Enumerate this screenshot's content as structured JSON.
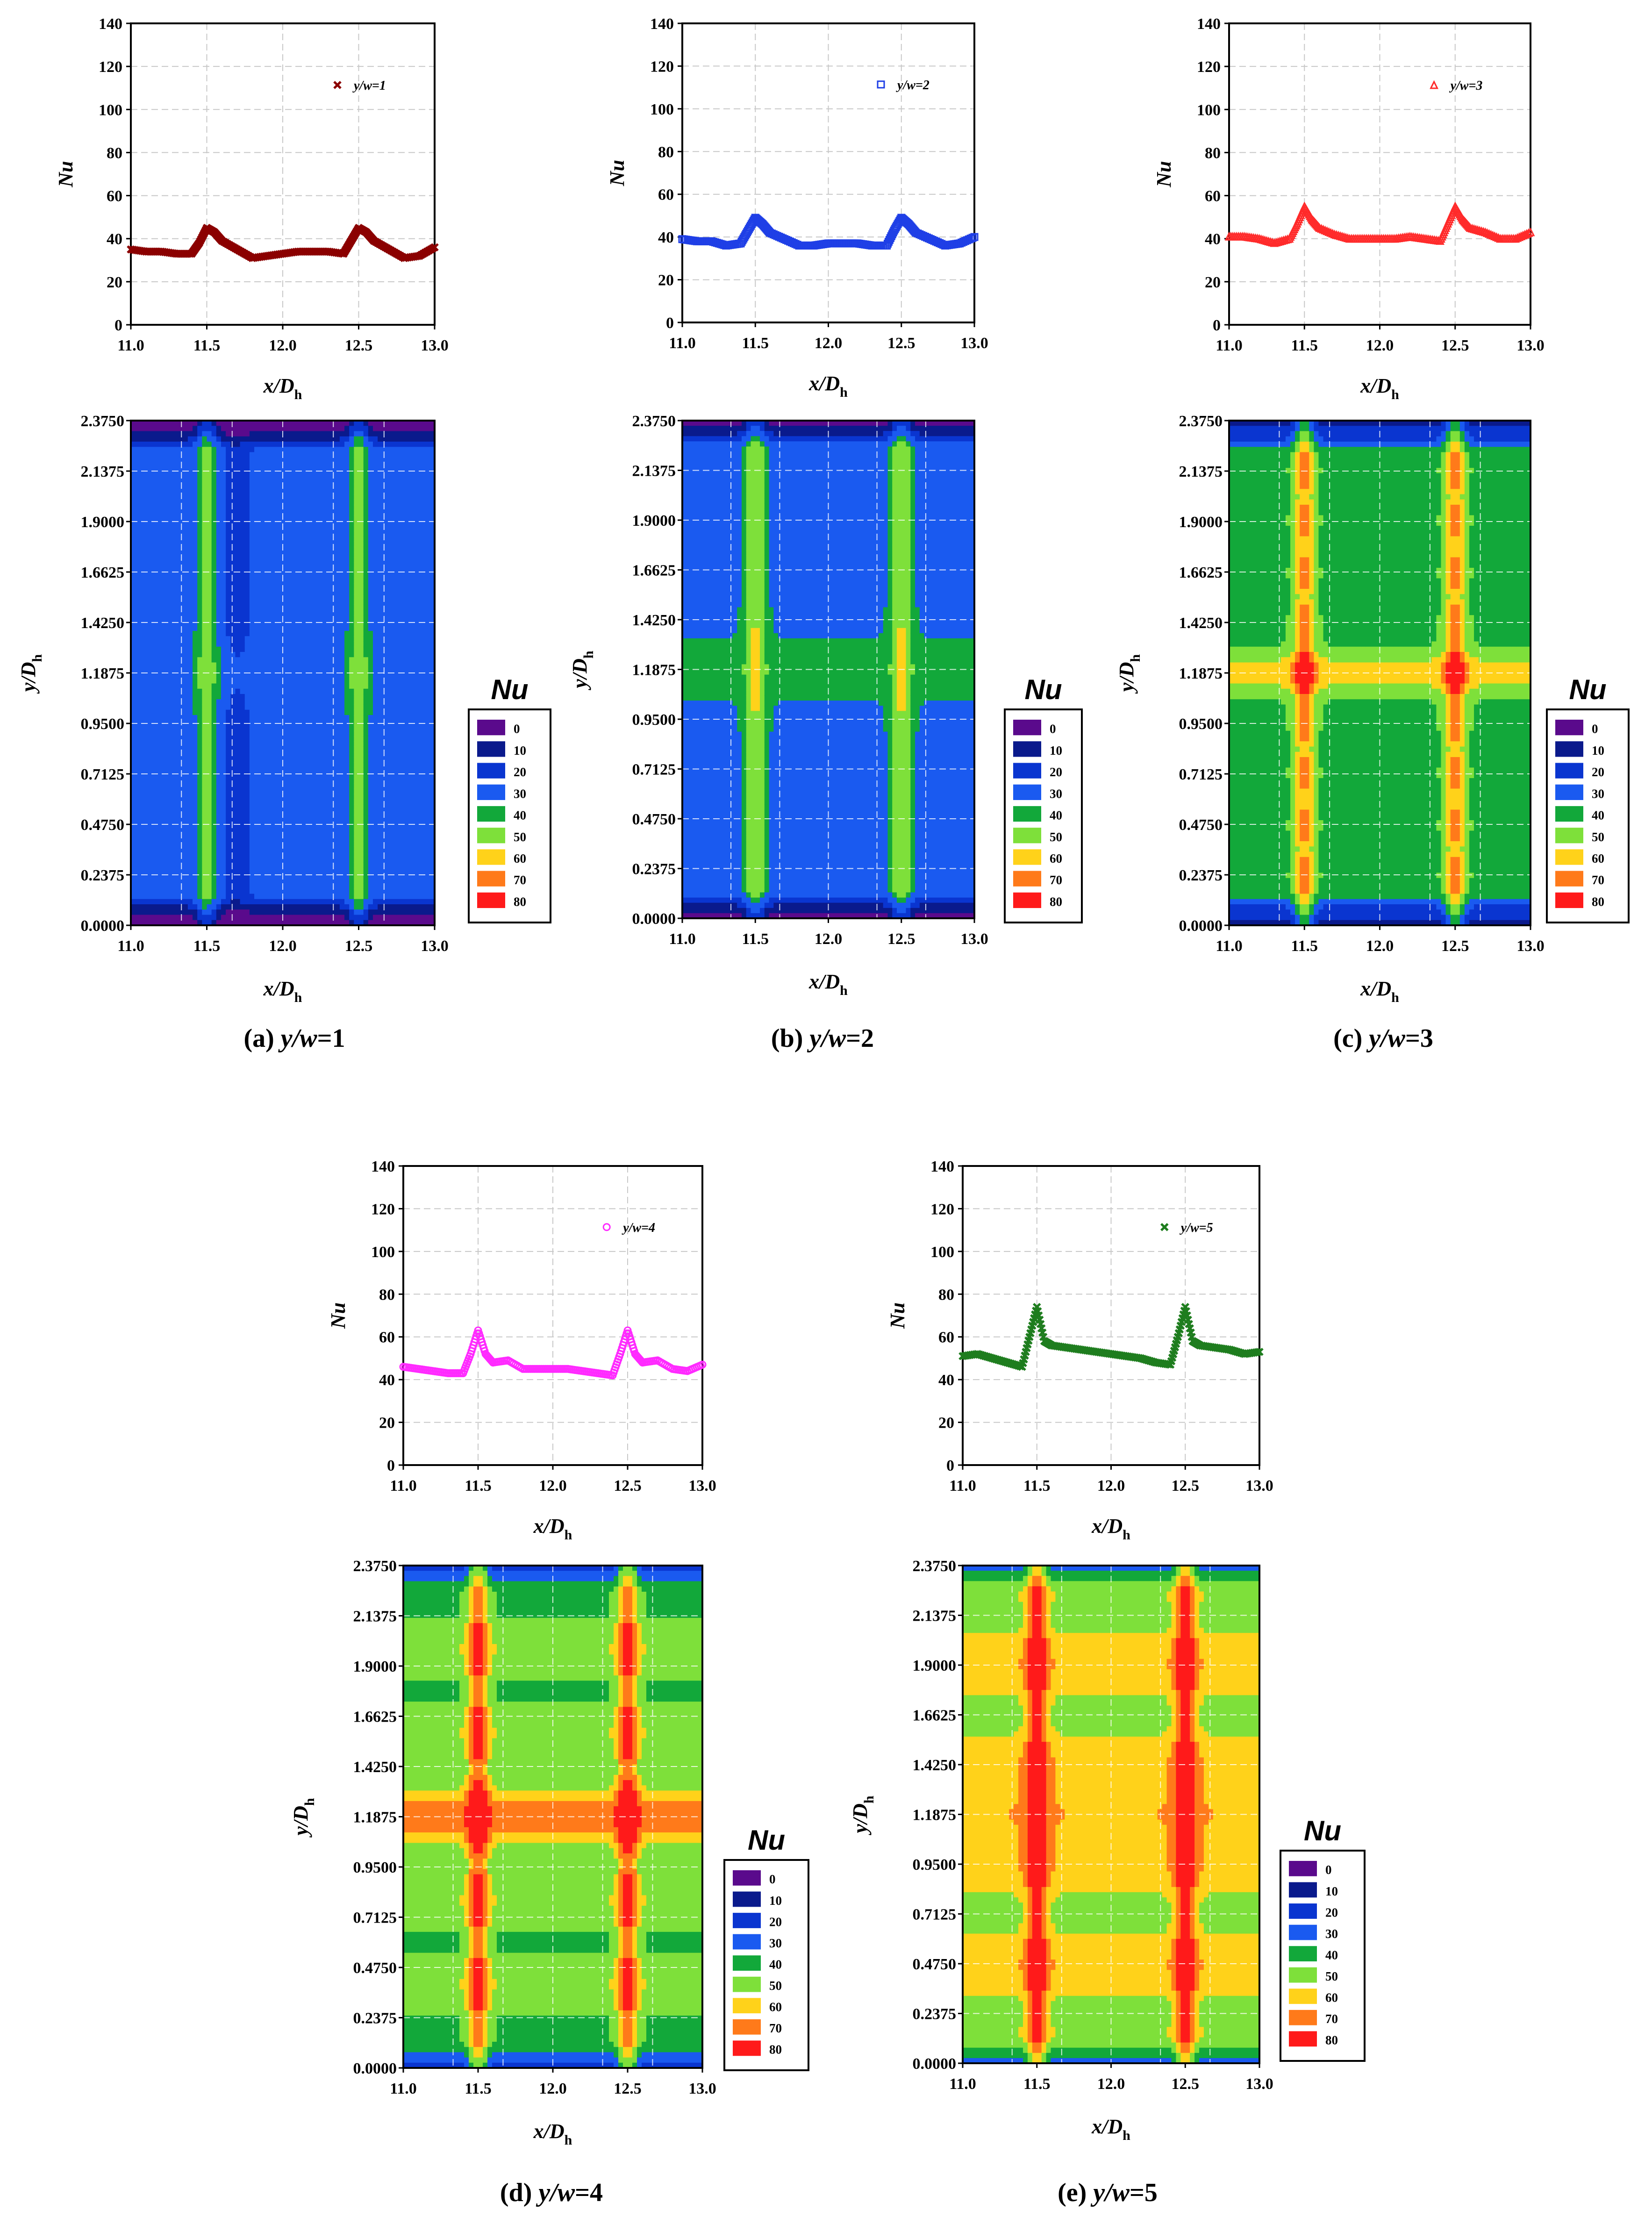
{
  "colorbar": {
    "title": "Nu",
    "levels": [
      "0",
      "10",
      "20",
      "30",
      "40",
      "50",
      "60",
      "70",
      "80"
    ],
    "colors": [
      "#5a0a8c",
      "#0a1a8c",
      "#0a35d0",
      "#1a5af0",
      "#12a83a",
      "#7ee03a",
      "#ffd21a",
      "#ff7a1a",
      "#ff1a1a"
    ]
  },
  "line_axes": {
    "ylabel": "Nu",
    "xlabel_main": "x/D",
    "xlabel_sub": "h",
    "y_ticks": [
      "0",
      "20",
      "40",
      "60",
      "80",
      "100",
      "120",
      "140"
    ],
    "x_ticks": [
      "11.0",
      "11.5",
      "12.0",
      "12.5",
      "13.0"
    ]
  },
  "contour_axes": {
    "ylabel_main": "y/D",
    "ylabel_sub": "h",
    "xlabel_main": "x/D",
    "xlabel_sub": "h",
    "y_ticks": [
      "0.0000",
      "0.2375",
      "0.4750",
      "0.7125",
      "0.9500",
      "1.1875",
      "1.4250",
      "1.6625",
      "1.9000",
      "2.1375",
      "2.3750"
    ],
    "x_ticks": [
      "11.0",
      "11.5",
      "12.0",
      "12.5",
      "13.0"
    ]
  },
  "panels": [
    {
      "caption_letter": "(a) ",
      "caption_var": "y/w",
      "caption_val": "=1",
      "legend": "y/w=1",
      "color": "#8b0000",
      "marker": "x"
    },
    {
      "caption_letter": "(b) ",
      "caption_var": "y/w",
      "caption_val": "=2",
      "legend": "y/w=2",
      "color": "#1f3fe6",
      "marker": "square"
    },
    {
      "caption_letter": "(c) ",
      "caption_var": "y/w",
      "caption_val": "=3",
      "legend": "y/w=3",
      "color": "#ff2a2a",
      "marker": "triangle"
    },
    {
      "caption_letter": "(d) ",
      "caption_var": "y/w",
      "caption_val": "=4",
      "legend": "y/w=4",
      "color": "#ff2aff",
      "marker": "circle"
    },
    {
      "caption_letter": "(e) ",
      "caption_var": "y/w",
      "caption_val": "=5",
      "legend": "y/w=5",
      "color": "#1e7d1e",
      "marker": "x"
    }
  ],
  "chart_data": [
    {
      "type": "line",
      "panel": "a",
      "xlabel": "x/Dh",
      "ylabel": "Nu",
      "xlim": [
        11.0,
        13.0
      ],
      "ylim": [
        0,
        140
      ],
      "grid": true,
      "legend_position": "top-right",
      "series": [
        {
          "name": "y/w=1",
          "x": [
            11.0,
            11.1,
            11.2,
            11.3,
            11.4,
            11.45,
            11.5,
            11.55,
            11.6,
            11.7,
            11.8,
            11.9,
            12.0,
            12.1,
            12.2,
            12.3,
            12.4,
            12.45,
            12.5,
            12.55,
            12.6,
            12.7,
            12.8,
            12.9,
            13.0
          ],
          "y": [
            35,
            34,
            34,
            33,
            33,
            38,
            45,
            43,
            39,
            35,
            31,
            32,
            33,
            34,
            34,
            34,
            33,
            39,
            45,
            43,
            39,
            35,
            31,
            32,
            36
          ]
        }
      ]
    },
    {
      "type": "line",
      "panel": "b",
      "xlabel": "x/Dh",
      "ylabel": "Nu",
      "xlim": [
        11.0,
        13.0
      ],
      "ylim": [
        0,
        140
      ],
      "grid": true,
      "legend_position": "top-right",
      "series": [
        {
          "name": "y/w=2",
          "x": [
            11.0,
            11.1,
            11.2,
            11.3,
            11.4,
            11.45,
            11.5,
            11.55,
            11.6,
            11.7,
            11.8,
            11.9,
            12.0,
            12.1,
            12.2,
            12.3,
            12.4,
            12.45,
            12.5,
            12.55,
            12.6,
            12.7,
            12.8,
            12.9,
            13.0
          ],
          "y": [
            39,
            38,
            38,
            36,
            37,
            43,
            49,
            46,
            42,
            39,
            36,
            36,
            37,
            37,
            37,
            36,
            36,
            43,
            49,
            46,
            42,
            39,
            36,
            37,
            40
          ]
        }
      ]
    },
    {
      "type": "line",
      "panel": "c",
      "xlabel": "x/Dh",
      "ylabel": "Nu",
      "xlim": [
        11.0,
        13.0
      ],
      "ylim": [
        0,
        140
      ],
      "grid": true,
      "legend_position": "top-right",
      "series": [
        {
          "name": "y/w=3",
          "x": [
            11.0,
            11.1,
            11.2,
            11.3,
            11.4,
            11.45,
            11.5,
            11.55,
            11.6,
            11.7,
            11.8,
            11.9,
            12.0,
            12.1,
            12.2,
            12.3,
            12.4,
            12.45,
            12.5,
            12.55,
            12.6,
            12.7,
            12.8,
            12.9,
            13.0
          ],
          "y": [
            41,
            41,
            40,
            38,
            40,
            47,
            55,
            49,
            45,
            42,
            40,
            40,
            40,
            40,
            41,
            40,
            39,
            47,
            55,
            49,
            45,
            43,
            40,
            40,
            43
          ]
        }
      ]
    },
    {
      "type": "line",
      "panel": "d",
      "xlabel": "x/Dh",
      "ylabel": "Nu",
      "xlim": [
        11.0,
        13.0
      ],
      "ylim": [
        0,
        140
      ],
      "grid": true,
      "legend_position": "top-right",
      "series": [
        {
          "name": "y/w=4",
          "x": [
            11.0,
            11.1,
            11.2,
            11.3,
            11.4,
            11.45,
            11.5,
            11.55,
            11.6,
            11.7,
            11.8,
            11.9,
            12.0,
            12.1,
            12.2,
            12.3,
            12.4,
            12.45,
            12.5,
            12.55,
            12.6,
            12.7,
            12.8,
            12.9,
            13.0
          ],
          "y": [
            46,
            45,
            44,
            43,
            43,
            52,
            63,
            52,
            48,
            49,
            45,
            45,
            45,
            45,
            44,
            43,
            42,
            52,
            63,
            52,
            48,
            49,
            45,
            44,
            47
          ]
        }
      ]
    },
    {
      "type": "line",
      "panel": "e",
      "xlabel": "x/Dh",
      "ylabel": "Nu",
      "xlim": [
        11.0,
        13.0
      ],
      "ylim": [
        0,
        140
      ],
      "grid": true,
      "legend_position": "top-right",
      "series": [
        {
          "name": "y/w=5",
          "x": [
            11.0,
            11.1,
            11.2,
            11.3,
            11.4,
            11.45,
            11.5,
            11.55,
            11.6,
            11.7,
            11.8,
            11.9,
            12.0,
            12.1,
            12.2,
            12.3,
            12.4,
            12.45,
            12.5,
            12.55,
            12.6,
            12.7,
            12.8,
            12.9,
            13.0
          ],
          "y": [
            51,
            52,
            50,
            48,
            46,
            60,
            74,
            58,
            56,
            55,
            54,
            53,
            52,
            51,
            50,
            48,
            47,
            60,
            74,
            58,
            56,
            55,
            54,
            52,
            53
          ]
        }
      ]
    },
    {
      "type": "heatmap",
      "panel": "a",
      "xlabel": "x/Dh",
      "ylabel": "y/Dh",
      "xlim": [
        11.0,
        13.0
      ],
      "ylim": [
        0.0,
        2.375
      ],
      "zlabel": "Nu",
      "zlevels": [
        0,
        10,
        20,
        30,
        40,
        50,
        60,
        70,
        80
      ]
    },
    {
      "type": "heatmap",
      "panel": "b",
      "xlabel": "x/Dh",
      "ylabel": "y/Dh",
      "xlim": [
        11.0,
        13.0
      ],
      "ylim": [
        0.0,
        2.375
      ],
      "zlabel": "Nu",
      "zlevels": [
        0,
        10,
        20,
        30,
        40,
        50,
        60,
        70,
        80
      ]
    },
    {
      "type": "heatmap",
      "panel": "c",
      "xlabel": "x/Dh",
      "ylabel": "y/Dh",
      "xlim": [
        11.0,
        13.0
      ],
      "ylim": [
        0.0,
        2.375
      ],
      "zlabel": "Nu",
      "zlevels": [
        0,
        10,
        20,
        30,
        40,
        50,
        60,
        70,
        80
      ]
    },
    {
      "type": "heatmap",
      "panel": "d",
      "xlabel": "x/Dh",
      "ylabel": "y/Dh",
      "xlim": [
        11.0,
        13.0
      ],
      "ylim": [
        0.0,
        2.375
      ],
      "zlabel": "Nu",
      "zlevels": [
        0,
        10,
        20,
        30,
        40,
        50,
        60,
        70,
        80
      ]
    },
    {
      "type": "heatmap",
      "panel": "e",
      "xlabel": "x/Dh",
      "ylabel": "y/Dh",
      "xlim": [
        11.0,
        13.0
      ],
      "ylim": [
        0.0,
        2.375
      ],
      "zlabel": "Nu",
      "zlevels": [
        0,
        10,
        20,
        30,
        40,
        50,
        60,
        70,
        80
      ]
    }
  ]
}
